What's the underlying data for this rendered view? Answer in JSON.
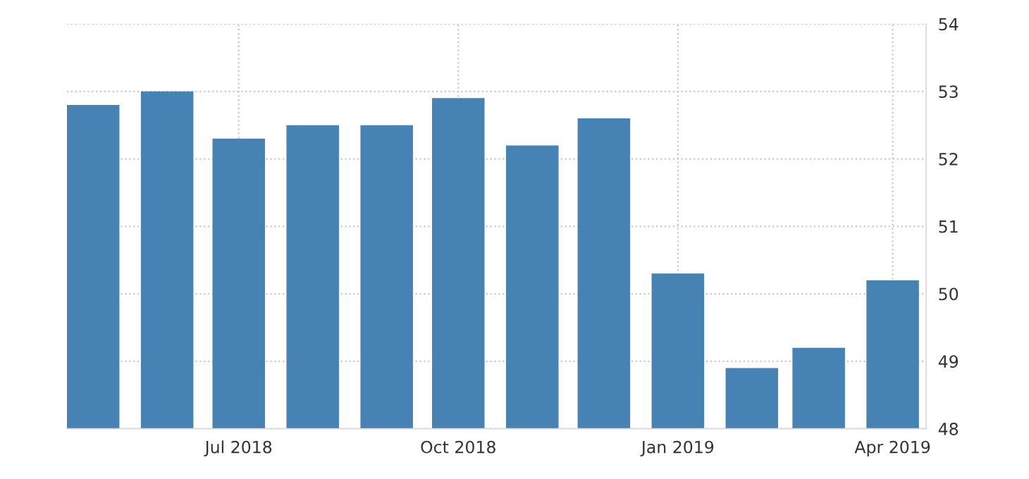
{
  "chart_data": {
    "type": "bar",
    "x": [
      "2018-05",
      "2018-06",
      "2018-07",
      "2018-08",
      "2018-09",
      "2018-10",
      "2018-11",
      "2018-12",
      "2019-01",
      "2019-02",
      "2019-03",
      "2019-04"
    ],
    "values": [
      52.8,
      53.0,
      52.3,
      52.5,
      52.5,
      52.9,
      52.2,
      52.6,
      50.3,
      48.9,
      49.2,
      50.2
    ],
    "color": "#4682b4",
    "xlim": [
      "2018-04-20",
      "2019-04-15"
    ],
    "xticks": [
      {
        "value": "2018-07",
        "label": "Jul 2018"
      },
      {
        "value": "2018-10",
        "label": "Oct 2018"
      },
      {
        "value": "2019-01",
        "label": "Jan 2019"
      },
      {
        "value": "2019-04",
        "label": "Apr 2019"
      }
    ],
    "ylim": [
      48,
      54
    ],
    "yticks": [
      48,
      49,
      50,
      51,
      52,
      53,
      54
    ],
    "grid": true
  }
}
